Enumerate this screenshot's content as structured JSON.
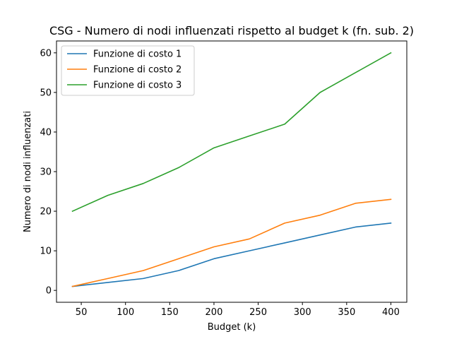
{
  "chart_data": {
    "type": "line",
    "title": "CSG - Numero di nodi influenzati rispetto al budget k (fn. sub. 2)",
    "xlabel": "Budget (k)",
    "ylabel": "Numero di nodi influenzati",
    "x": [
      40,
      80,
      120,
      160,
      200,
      240,
      280,
      320,
      360,
      400
    ],
    "xlim": [
      22,
      418
    ],
    "ylim": [
      -3,
      63
    ],
    "xticks": [
      50,
      100,
      150,
      200,
      250,
      300,
      350,
      400
    ],
    "yticks": [
      0,
      10,
      20,
      30,
      40,
      50,
      60
    ],
    "legend_position": "upper-left",
    "grid": false,
    "series": [
      {
        "name": "Funzione di costo 1",
        "color": "#1f77b4",
        "values": [
          1,
          2,
          3,
          5,
          8,
          10,
          12,
          14,
          16,
          17
        ]
      },
      {
        "name": "Funzione di costo 2",
        "color": "#ff7f0e",
        "values": [
          1,
          3,
          5,
          8,
          11,
          13,
          17,
          19,
          22,
          23
        ]
      },
      {
        "name": "Funzione di costo 3",
        "color": "#2ca02c",
        "values": [
          20,
          24,
          27,
          31,
          36,
          39,
          42,
          50,
          55,
          60
        ]
      }
    ]
  }
}
